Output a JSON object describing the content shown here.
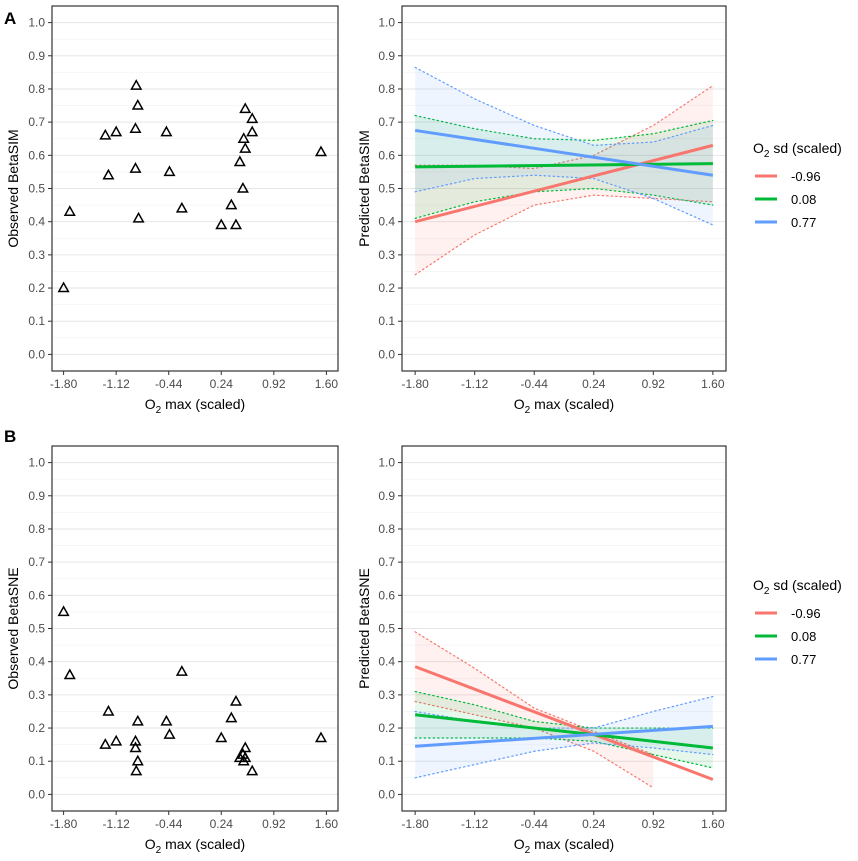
{
  "chart_data": [
    {
      "id": "A-observed",
      "type": "scatter",
      "panel_letter": "A",
      "title": "",
      "xlabel": "O2 max (scaled)",
      "ylabel": "Observed BetaSIM",
      "xlim": [
        -1.95,
        1.75
      ],
      "ylim": [
        -0.05,
        1.05
      ],
      "x_ticks": [
        -1.8,
        -1.12,
        -0.44,
        0.24,
        0.92,
        1.6
      ],
      "y_ticks": [
        0.0,
        0.1,
        0.2,
        0.3,
        0.4,
        0.5,
        0.6,
        0.7,
        0.8,
        0.9,
        1.0
      ],
      "marker": "open-triangle",
      "points": [
        {
          "x": -1.8,
          "y": 0.2
        },
        {
          "x": -1.72,
          "y": 0.43
        },
        {
          "x": -1.26,
          "y": 0.66
        },
        {
          "x": -1.22,
          "y": 0.54
        },
        {
          "x": -1.12,
          "y": 0.67
        },
        {
          "x": -0.86,
          "y": 0.81
        },
        {
          "x": -0.84,
          "y": 0.75
        },
        {
          "x": -0.87,
          "y": 0.68
        },
        {
          "x": -0.87,
          "y": 0.56
        },
        {
          "x": -0.83,
          "y": 0.41
        },
        {
          "x": -0.47,
          "y": 0.67
        },
        {
          "x": -0.43,
          "y": 0.55
        },
        {
          "x": -0.27,
          "y": 0.44
        },
        {
          "x": 0.24,
          "y": 0.39
        },
        {
          "x": 0.37,
          "y": 0.45
        },
        {
          "x": 0.43,
          "y": 0.39
        },
        {
          "x": 0.48,
          "y": 0.58
        },
        {
          "x": 0.52,
          "y": 0.5
        },
        {
          "x": 0.53,
          "y": 0.65
        },
        {
          "x": 0.55,
          "y": 0.62
        },
        {
          "x": 0.55,
          "y": 0.74
        },
        {
          "x": 0.64,
          "y": 0.71
        },
        {
          "x": 0.64,
          "y": 0.67
        },
        {
          "x": 1.53,
          "y": 0.61
        }
      ]
    },
    {
      "id": "A-predicted",
      "type": "line",
      "panel_letter": "",
      "title": "",
      "xlabel": "O2 max (scaled)",
      "ylabel": "Predicted BetaSIM",
      "xlim": [
        -1.95,
        1.75
      ],
      "ylim": [
        -0.05,
        1.05
      ],
      "x_ticks": [
        -1.8,
        -1.12,
        -0.44,
        0.24,
        0.92,
        1.6
      ],
      "y_ticks": [
        0.0,
        0.1,
        0.2,
        0.3,
        0.4,
        0.5,
        0.6,
        0.7,
        0.8,
        0.9,
        1.0
      ],
      "legend_title_main": "O",
      "legend_title_sub": "2",
      "legend_title_rest": " sd (scaled)",
      "series": [
        {
          "name": "-0.96",
          "color": "#F8766D",
          "x": [
            -1.8,
            1.6
          ],
          "y": [
            0.4,
            0.63
          ],
          "ci_x": [
            -1.8,
            -1.12,
            -0.44,
            0.24,
            0.92,
            1.6
          ],
          "ci_lower": [
            0.24,
            0.36,
            0.45,
            0.48,
            0.47,
            0.46
          ],
          "ci_upper": [
            0.57,
            0.57,
            0.56,
            0.6,
            0.69,
            0.81
          ]
        },
        {
          "name": "0.08",
          "color": "#00BA38",
          "x": [
            -1.8,
            1.6
          ],
          "y": [
            0.565,
            0.575
          ],
          "ci_x": [
            -1.8,
            -1.12,
            -0.44,
            0.24,
            0.92,
            1.6
          ],
          "ci_lower": [
            0.41,
            0.46,
            0.49,
            0.5,
            0.48,
            0.45
          ],
          "ci_upper": [
            0.72,
            0.68,
            0.65,
            0.645,
            0.665,
            0.705
          ]
        },
        {
          "name": "0.77",
          "color": "#619CFF",
          "x": [
            -1.8,
            1.6
          ],
          "y": [
            0.675,
            0.54
          ],
          "ci_x": [
            -1.8,
            -1.12,
            -0.44,
            0.24,
            0.92,
            1.6
          ],
          "ci_lower": [
            0.49,
            0.53,
            0.54,
            0.53,
            0.47,
            0.39
          ],
          "ci_upper": [
            0.865,
            0.77,
            0.69,
            0.63,
            0.64,
            0.69
          ]
        }
      ]
    },
    {
      "id": "B-observed",
      "type": "scatter",
      "panel_letter": "B",
      "title": "",
      "xlabel": "O2 max (scaled)",
      "ylabel": "Observed BetaSNE",
      "xlim": [
        -1.95,
        1.75
      ],
      "ylim": [
        -0.05,
        1.05
      ],
      "x_ticks": [
        -1.8,
        -1.12,
        -0.44,
        0.24,
        0.92,
        1.6
      ],
      "y_ticks": [
        0.0,
        0.1,
        0.2,
        0.3,
        0.4,
        0.5,
        0.6,
        0.7,
        0.8,
        0.9,
        1.0
      ],
      "marker": "open-triangle",
      "points": [
        {
          "x": -1.8,
          "y": 0.55
        },
        {
          "x": -1.72,
          "y": 0.36
        },
        {
          "x": -1.26,
          "y": 0.15
        },
        {
          "x": -1.22,
          "y": 0.25
        },
        {
          "x": -1.12,
          "y": 0.16
        },
        {
          "x": -0.87,
          "y": 0.16
        },
        {
          "x": -0.87,
          "y": 0.14
        },
        {
          "x": -0.84,
          "y": 0.22
        },
        {
          "x": -0.84,
          "y": 0.1
        },
        {
          "x": -0.86,
          "y": 0.07
        },
        {
          "x": -0.47,
          "y": 0.22
        },
        {
          "x": -0.43,
          "y": 0.18
        },
        {
          "x": -0.27,
          "y": 0.37
        },
        {
          "x": 0.24,
          "y": 0.17
        },
        {
          "x": 0.37,
          "y": 0.23
        },
        {
          "x": 0.43,
          "y": 0.28
        },
        {
          "x": 0.48,
          "y": 0.11
        },
        {
          "x": 0.52,
          "y": 0.12
        },
        {
          "x": 0.53,
          "y": 0.1
        },
        {
          "x": 0.55,
          "y": 0.14
        },
        {
          "x": 0.55,
          "y": 0.11
        },
        {
          "x": 0.64,
          "y": 0.07
        },
        {
          "x": 1.53,
          "y": 0.17
        }
      ]
    },
    {
      "id": "B-predicted",
      "type": "line",
      "panel_letter": "",
      "title": "",
      "xlabel": "O2 max (scaled)",
      "ylabel": "Predicted BetaSNE",
      "xlim": [
        -1.95,
        1.75
      ],
      "ylim": [
        -0.05,
        1.05
      ],
      "x_ticks": [
        -1.8,
        -1.12,
        -0.44,
        0.24,
        0.92,
        1.6
      ],
      "y_ticks": [
        0.0,
        0.1,
        0.2,
        0.3,
        0.4,
        0.5,
        0.6,
        0.7,
        0.8,
        0.9,
        1.0
      ],
      "legend_title_main": "O",
      "legend_title_sub": "2",
      "legend_title_rest": " sd (scaled)",
      "series": [
        {
          "name": "-0.96",
          "color": "#F8766D",
          "x": [
            -1.8,
            1.6
          ],
          "y": [
            0.385,
            0.045
          ],
          "ci_x": [
            -1.8,
            -1.12,
            -0.44,
            0.24,
            0.92
          ],
          "ci_lower": [
            0.28,
            0.24,
            0.2,
            0.13,
            0.02
          ],
          "ci_upper": [
            0.49,
            0.38,
            0.26,
            0.19,
            0.12
          ]
        },
        {
          "name": "0.08",
          "color": "#00BA38",
          "x": [
            -1.8,
            1.6
          ],
          "y": [
            0.24,
            0.14
          ],
          "ci_x": [
            -1.8,
            -1.12,
            -0.44,
            0.24,
            0.92,
            1.6
          ],
          "ci_lower": [
            0.17,
            0.17,
            0.17,
            0.16,
            0.12,
            0.08
          ],
          "ci_upper": [
            0.31,
            0.27,
            0.22,
            0.2,
            0.2,
            0.2
          ]
        },
        {
          "name": "0.77",
          "color": "#619CFF",
          "x": [
            -1.8,
            1.6
          ],
          "y": [
            0.145,
            0.205
          ],
          "ci_x": [
            -1.8,
            -1.12,
            -0.44,
            0.24,
            0.92,
            1.6
          ],
          "ci_lower": [
            0.05,
            0.09,
            0.13,
            0.155,
            0.14,
            0.12
          ],
          "ci_upper": [
            0.25,
            0.22,
            0.2,
            0.2,
            0.25,
            0.295
          ]
        }
      ]
    }
  ]
}
